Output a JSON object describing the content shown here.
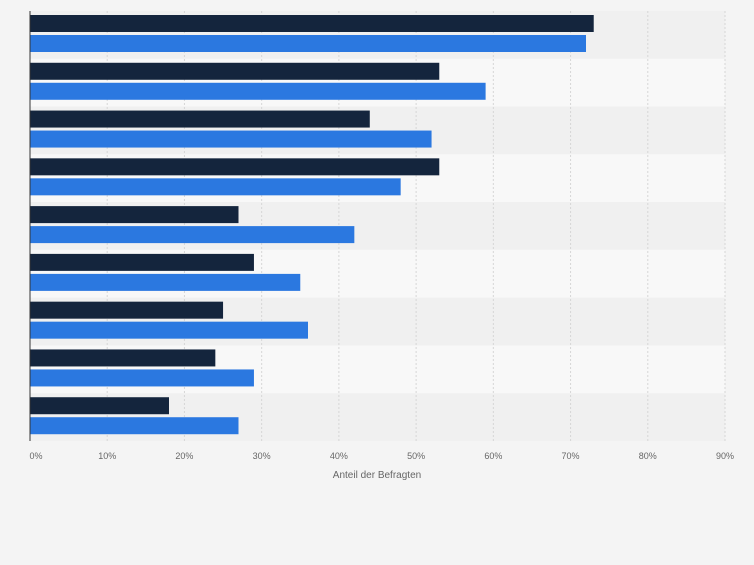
{
  "chart_data": {
    "type": "bar",
    "orientation": "horizontal",
    "categories": [
      "",
      "",
      "",
      "",
      "",
      "",
      "",
      "",
      ""
    ],
    "series": [
      {
        "values": [
          73,
          53,
          44,
          53,
          27,
          29,
          25,
          24,
          18
        ]
      },
      {
        "values": [
          72,
          59,
          52,
          48,
          42,
          35,
          36,
          29,
          27
        ]
      }
    ],
    "xlabel": "Anteil der Befragten",
    "ylabel": "",
    "xlim": [
      0,
      90
    ],
    "ticks": [
      "0%",
      "10%",
      "20%",
      "30%",
      "40%",
      "50%",
      "60%",
      "70%",
      "80%",
      "90%"
    ],
    "grid": true,
    "legend": "none",
    "colors": {
      "series1": "#14253d",
      "series2": "#2b78e0",
      "band_dark": "#f0f0f0",
      "band_light": "#f8f8f8",
      "grid": "#d6d6d6",
      "axis": "#333333",
      "tick_text": "#666666"
    }
  }
}
